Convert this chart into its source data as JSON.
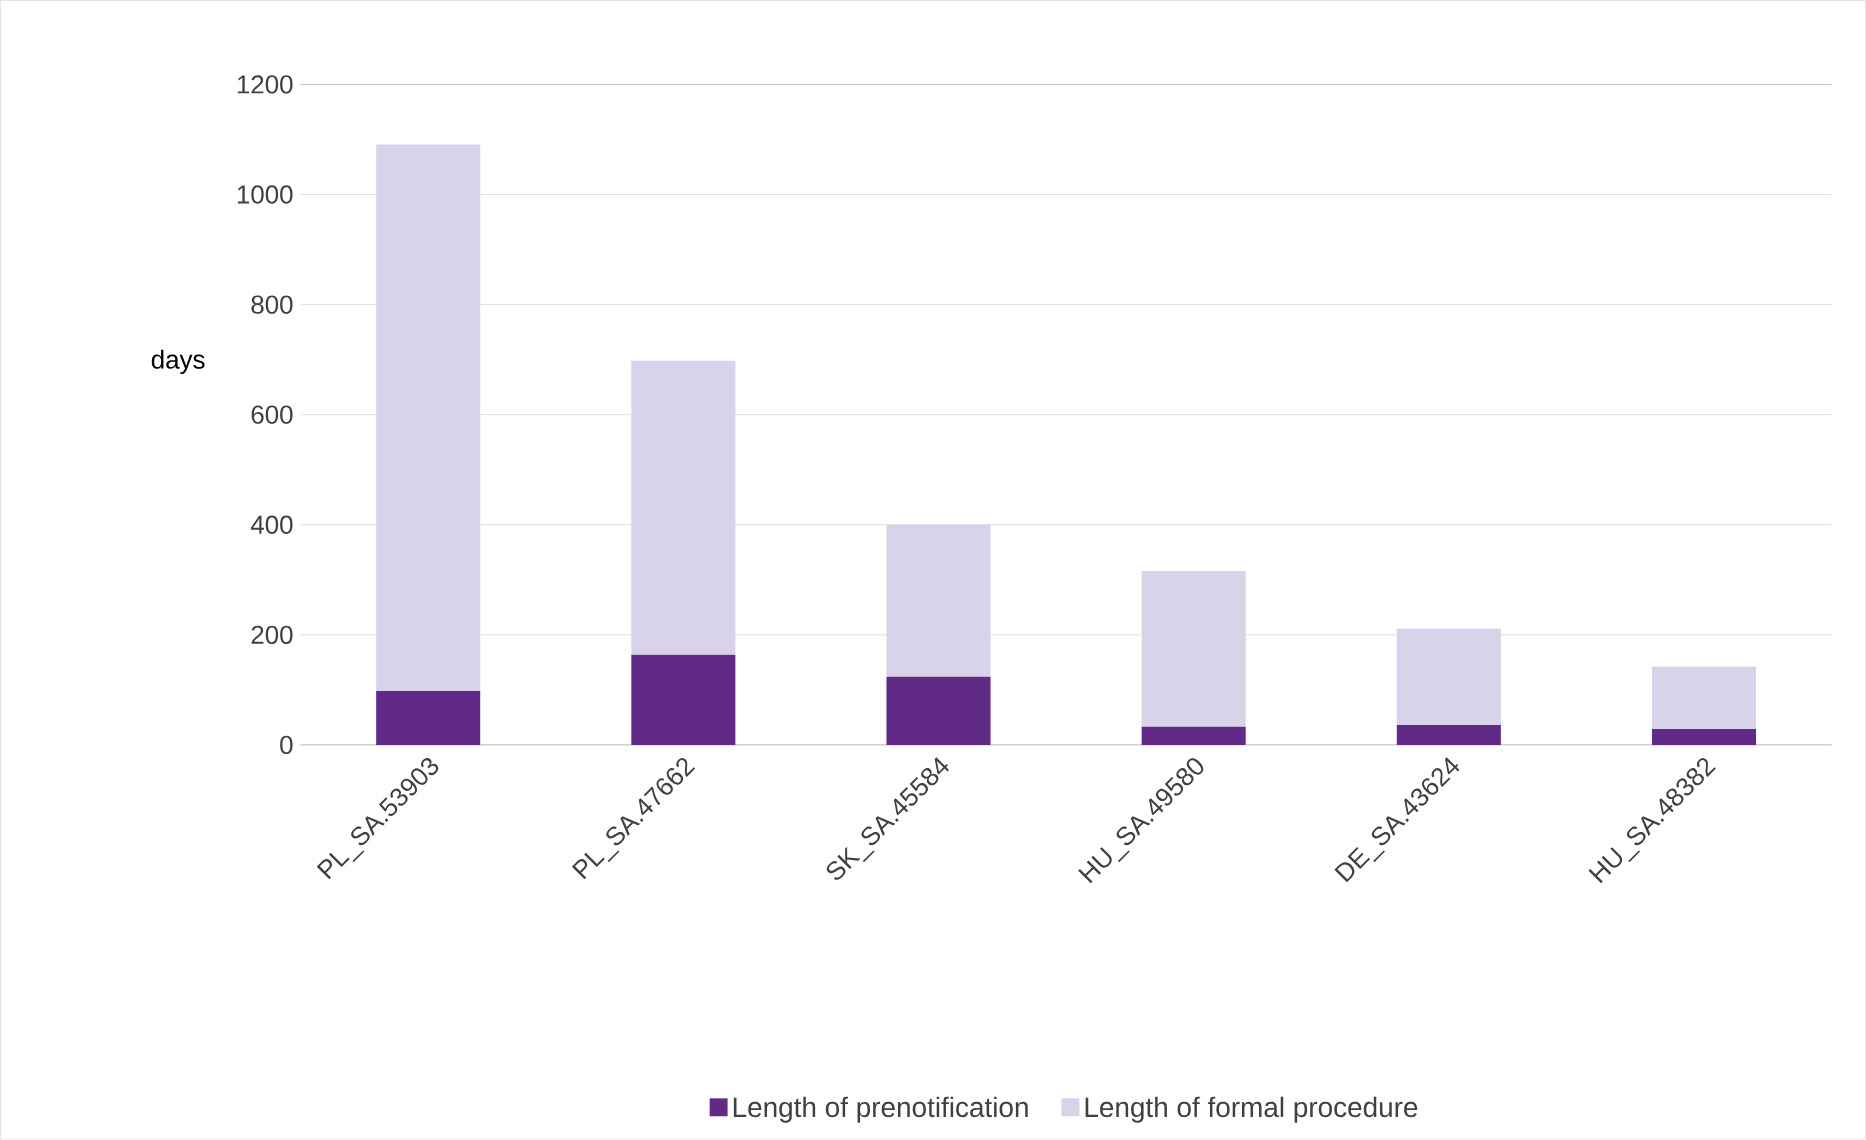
{
  "chart_data": {
    "type": "bar",
    "stacked": true,
    "ylabel": "days",
    "categories": [
      "PL_SA.53903",
      "PL_SA.47662",
      "SK_SA.45584",
      "HU_SA.49580",
      "DE_SA.43624",
      "HU_SA.48382"
    ],
    "series": [
      {
        "name": "Length of prenotification",
        "color": "#622a87",
        "values": [
          98,
          164,
          124,
          33,
          36,
          29
        ]
      },
      {
        "name": "Length of formal procedure",
        "color": "#d9d3ea",
        "values": [
          993,
          534,
          276,
          283,
          175,
          113
        ]
      }
    ],
    "ylim": [
      0,
      1200
    ],
    "yticks": [
      0,
      200,
      400,
      600,
      800,
      1000,
      1200
    ],
    "grid": "y",
    "legend": "bottom"
  }
}
